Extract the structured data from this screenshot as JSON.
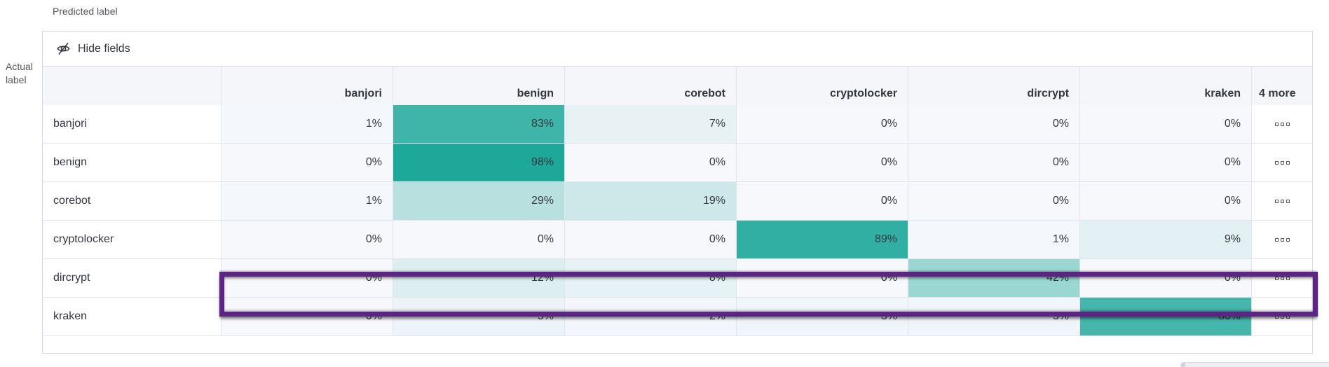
{
  "page": {
    "predicted_axis_label": "Predicted label",
    "actual_axis_label_line1": "Actual",
    "actual_axis_label_line2": "label"
  },
  "toolbar": {
    "hide_fields_label": "Hide fields",
    "icon": "eye-closed-icon"
  },
  "chart_data": {
    "type": "heatmap",
    "columns": [
      "banjori",
      "benign",
      "corebot",
      "cryptolocker",
      "dircrypt",
      "kraken"
    ],
    "more_column_label": "4 more",
    "row_actions_icon": "boxes-horizontal-icon",
    "value_suffix": "%",
    "rows": [
      {
        "label": "banjori",
        "values": [
          1,
          83,
          7,
          0,
          0,
          0
        ]
      },
      {
        "label": "benign",
        "values": [
          0,
          98,
          0,
          0,
          0,
          0
        ]
      },
      {
        "label": "corebot",
        "values": [
          1,
          29,
          19,
          0,
          0,
          0
        ]
      },
      {
        "label": "cryptolocker",
        "values": [
          0,
          0,
          0,
          89,
          1,
          9
        ]
      },
      {
        "label": "dircrypt",
        "values": [
          0,
          12,
          8,
          0,
          42,
          0
        ]
      },
      {
        "label": "kraken",
        "values": [
          0,
          5,
          2,
          3,
          3,
          80
        ]
      }
    ],
    "colors": {
      "heat_base": "#1aa698",
      "heat_rgb": "26,166,152",
      "cell_zero_bg": "#f7f8fc",
      "header_bg": "#f4f6fa",
      "panel_border": "#d3dae6",
      "text": "#343741"
    }
  },
  "highlight": {
    "row_label": "dircrypt",
    "color": "#5c2483"
  }
}
